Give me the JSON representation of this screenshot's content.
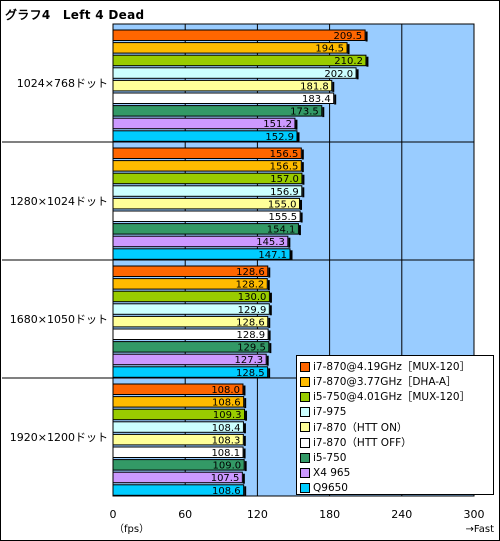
{
  "chart_data": {
    "type": "bar",
    "orientation": "horizontal",
    "title": "グラフ4　Left 4 Dead",
    "x_unit": "（fps）",
    "x_direction_note": "→Fast",
    "xlim": [
      0,
      300
    ],
    "x_ticks": [
      0,
      60,
      120,
      180,
      240,
      300
    ],
    "grid": true,
    "legend_position": "bottom-right",
    "categories": [
      "1024×768ドット",
      "1280×1024ドット",
      "1680×1050ドット",
      "1920×1200ドット"
    ],
    "series": [
      {
        "name": "i7-870@4.19GHz［MUX-120］",
        "color": "#ff6600",
        "values": [
          209.5,
          156.5,
          128.6,
          108.0
        ]
      },
      {
        "name": "i7-870@3.77GHz［DHA-A］",
        "color": "#ffbb00",
        "values": [
          194.5,
          156.5,
          128.2,
          108.6
        ]
      },
      {
        "name": "i5-750@4.01GHz［MUX-120］",
        "color": "#99cc00",
        "values": [
          210.2,
          157.0,
          130.0,
          109.3
        ]
      },
      {
        "name": "i7-975",
        "color": "#ccffff",
        "values": [
          202.0,
          156.9,
          129.9,
          108.4
        ]
      },
      {
        "name": "i7-870（HTT ON）",
        "color": "#ffff99",
        "values": [
          181.8,
          155.0,
          128.6,
          108.3
        ]
      },
      {
        "name": "i7-870（HTT OFF）",
        "color": "#ffffff",
        "values": [
          183.4,
          155.5,
          128.9,
          108.1
        ]
      },
      {
        "name": "i5-750",
        "color": "#339966",
        "values": [
          173.5,
          154.1,
          129.5,
          109.0
        ]
      },
      {
        "name": "X4 965",
        "color": "#cc99ff",
        "values": [
          151.2,
          145.3,
          127.3,
          107.5
        ]
      },
      {
        "name": "Q9650",
        "color": "#00ccff",
        "values": [
          152.9,
          147.1,
          128.5,
          108.6
        ]
      }
    ]
  },
  "colors": {
    "plot_background": "#99ccff",
    "category_background": "#ffffff"
  }
}
